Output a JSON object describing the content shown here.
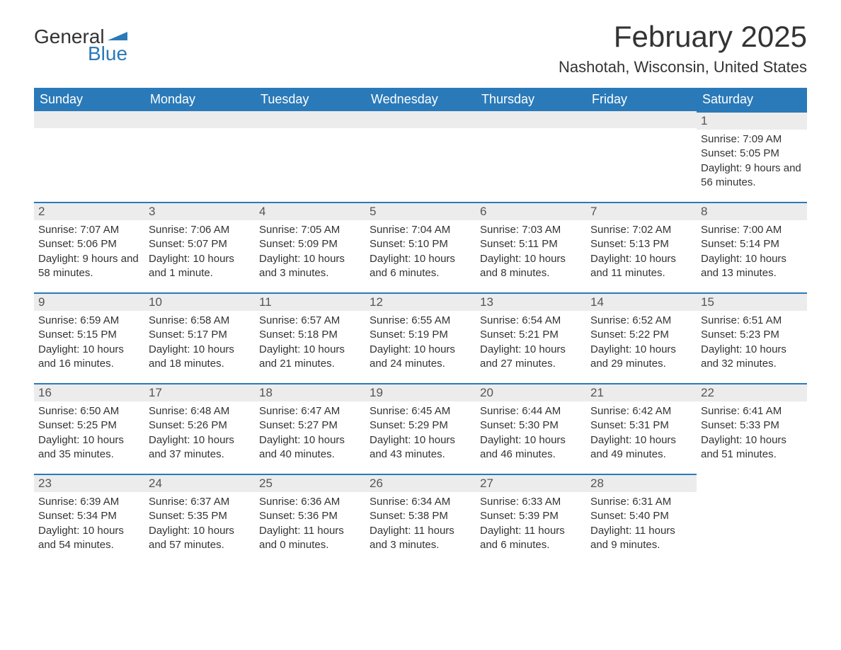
{
  "logo": {
    "word1": "General",
    "word2": "Blue",
    "flag_color": "#2a7ab9"
  },
  "title": "February 2025",
  "location": "Nashotah, Wisconsin, United States",
  "colors": {
    "header_bg": "#2a7ab9",
    "header_text": "#ffffff",
    "row_accent": "#2a7ab9",
    "daynum_bg": "#ececec",
    "body_text": "#333333"
  },
  "fonts": {
    "title_size_pt": 42,
    "location_size_pt": 22,
    "dayhdr_size_pt": 18,
    "body_size_pt": 15
  },
  "day_headers": [
    "Sunday",
    "Monday",
    "Tuesday",
    "Wednesday",
    "Thursday",
    "Friday",
    "Saturday"
  ],
  "weeks": [
    [
      null,
      null,
      null,
      null,
      null,
      null,
      {
        "n": "1",
        "sunrise": "Sunrise: 7:09 AM",
        "sunset": "Sunset: 5:05 PM",
        "daylight": "Daylight: 9 hours and 56 minutes."
      }
    ],
    [
      {
        "n": "2",
        "sunrise": "Sunrise: 7:07 AM",
        "sunset": "Sunset: 5:06 PM",
        "daylight": "Daylight: 9 hours and 58 minutes."
      },
      {
        "n": "3",
        "sunrise": "Sunrise: 7:06 AM",
        "sunset": "Sunset: 5:07 PM",
        "daylight": "Daylight: 10 hours and 1 minute."
      },
      {
        "n": "4",
        "sunrise": "Sunrise: 7:05 AM",
        "sunset": "Sunset: 5:09 PM",
        "daylight": "Daylight: 10 hours and 3 minutes."
      },
      {
        "n": "5",
        "sunrise": "Sunrise: 7:04 AM",
        "sunset": "Sunset: 5:10 PM",
        "daylight": "Daylight: 10 hours and 6 minutes."
      },
      {
        "n": "6",
        "sunrise": "Sunrise: 7:03 AM",
        "sunset": "Sunset: 5:11 PM",
        "daylight": "Daylight: 10 hours and 8 minutes."
      },
      {
        "n": "7",
        "sunrise": "Sunrise: 7:02 AM",
        "sunset": "Sunset: 5:13 PM",
        "daylight": "Daylight: 10 hours and 11 minutes."
      },
      {
        "n": "8",
        "sunrise": "Sunrise: 7:00 AM",
        "sunset": "Sunset: 5:14 PM",
        "daylight": "Daylight: 10 hours and 13 minutes."
      }
    ],
    [
      {
        "n": "9",
        "sunrise": "Sunrise: 6:59 AM",
        "sunset": "Sunset: 5:15 PM",
        "daylight": "Daylight: 10 hours and 16 minutes."
      },
      {
        "n": "10",
        "sunrise": "Sunrise: 6:58 AM",
        "sunset": "Sunset: 5:17 PM",
        "daylight": "Daylight: 10 hours and 18 minutes."
      },
      {
        "n": "11",
        "sunrise": "Sunrise: 6:57 AM",
        "sunset": "Sunset: 5:18 PM",
        "daylight": "Daylight: 10 hours and 21 minutes."
      },
      {
        "n": "12",
        "sunrise": "Sunrise: 6:55 AM",
        "sunset": "Sunset: 5:19 PM",
        "daylight": "Daylight: 10 hours and 24 minutes."
      },
      {
        "n": "13",
        "sunrise": "Sunrise: 6:54 AM",
        "sunset": "Sunset: 5:21 PM",
        "daylight": "Daylight: 10 hours and 27 minutes."
      },
      {
        "n": "14",
        "sunrise": "Sunrise: 6:52 AM",
        "sunset": "Sunset: 5:22 PM",
        "daylight": "Daylight: 10 hours and 29 minutes."
      },
      {
        "n": "15",
        "sunrise": "Sunrise: 6:51 AM",
        "sunset": "Sunset: 5:23 PM",
        "daylight": "Daylight: 10 hours and 32 minutes."
      }
    ],
    [
      {
        "n": "16",
        "sunrise": "Sunrise: 6:50 AM",
        "sunset": "Sunset: 5:25 PM",
        "daylight": "Daylight: 10 hours and 35 minutes."
      },
      {
        "n": "17",
        "sunrise": "Sunrise: 6:48 AM",
        "sunset": "Sunset: 5:26 PM",
        "daylight": "Daylight: 10 hours and 37 minutes."
      },
      {
        "n": "18",
        "sunrise": "Sunrise: 6:47 AM",
        "sunset": "Sunset: 5:27 PM",
        "daylight": "Daylight: 10 hours and 40 minutes."
      },
      {
        "n": "19",
        "sunrise": "Sunrise: 6:45 AM",
        "sunset": "Sunset: 5:29 PM",
        "daylight": "Daylight: 10 hours and 43 minutes."
      },
      {
        "n": "20",
        "sunrise": "Sunrise: 6:44 AM",
        "sunset": "Sunset: 5:30 PM",
        "daylight": "Daylight: 10 hours and 46 minutes."
      },
      {
        "n": "21",
        "sunrise": "Sunrise: 6:42 AM",
        "sunset": "Sunset: 5:31 PM",
        "daylight": "Daylight: 10 hours and 49 minutes."
      },
      {
        "n": "22",
        "sunrise": "Sunrise: 6:41 AM",
        "sunset": "Sunset: 5:33 PM",
        "daylight": "Daylight: 10 hours and 51 minutes."
      }
    ],
    [
      {
        "n": "23",
        "sunrise": "Sunrise: 6:39 AM",
        "sunset": "Sunset: 5:34 PM",
        "daylight": "Daylight: 10 hours and 54 minutes."
      },
      {
        "n": "24",
        "sunrise": "Sunrise: 6:37 AM",
        "sunset": "Sunset: 5:35 PM",
        "daylight": "Daylight: 10 hours and 57 minutes."
      },
      {
        "n": "25",
        "sunrise": "Sunrise: 6:36 AM",
        "sunset": "Sunset: 5:36 PM",
        "daylight": "Daylight: 11 hours and 0 minutes."
      },
      {
        "n": "26",
        "sunrise": "Sunrise: 6:34 AM",
        "sunset": "Sunset: 5:38 PM",
        "daylight": "Daylight: 11 hours and 3 minutes."
      },
      {
        "n": "27",
        "sunrise": "Sunrise: 6:33 AM",
        "sunset": "Sunset: 5:39 PM",
        "daylight": "Daylight: 11 hours and 6 minutes."
      },
      {
        "n": "28",
        "sunrise": "Sunrise: 6:31 AM",
        "sunset": "Sunset: 5:40 PM",
        "daylight": "Daylight: 11 hours and 9 minutes."
      },
      null
    ]
  ]
}
